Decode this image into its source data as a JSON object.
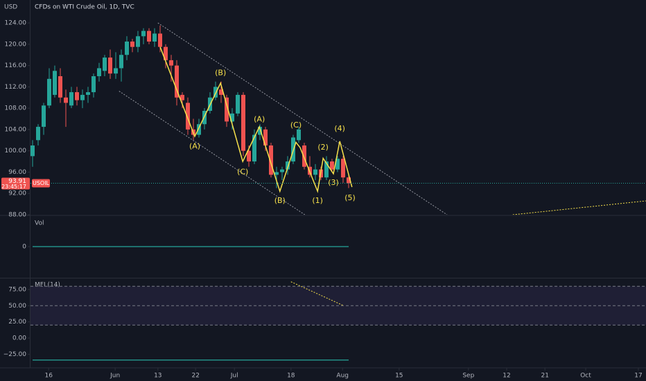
{
  "chart_data": [
    {
      "type": "candlestick",
      "title": "CFDs on WTI Crude Oil, 1D, TVC",
      "y_label": "USD",
      "symbol": "USOIL",
      "countdown": "23:45:17",
      "up_color": "#26a69a",
      "down_color": "#ef5350",
      "open": [
        99,
        102,
        104.5,
        108.5,
        110.5,
        114,
        110,
        108.5,
        111,
        109.5,
        110.5,
        111,
        114,
        115,
        117.5,
        114.5,
        115.5,
        118,
        120.5,
        119.5,
        121.5,
        122.5,
        120.5,
        122,
        119.5,
        117,
        116,
        110.5,
        109,
        104,
        103,
        105,
        107.5,
        110,
        111.5,
        110,
        105.5,
        107,
        110.5,
        100,
        98,
        103,
        104,
        101,
        95.5,
        96,
        96.5,
        98,
        102,
        101,
        97,
        95.5,
        96.5,
        95,
        98,
        96.5,
        98.5,
        95
      ],
      "high": [
        102,
        105,
        109,
        115.5,
        116,
        115.5,
        111.5,
        112,
        112,
        111.5,
        112,
        114.5,
        116.5,
        118,
        119,
        118.5,
        119,
        121.5,
        121,
        122.5,
        123,
        123,
        123,
        123.5,
        120,
        118,
        117,
        111,
        110,
        106,
        106,
        108,
        111,
        113,
        113,
        110.5,
        108,
        111,
        111,
        101,
        104,
        105,
        104.5,
        101.5,
        97,
        97,
        99,
        103,
        104.5,
        101.5,
        99,
        97.5,
        97,
        99,
        98.5,
        99,
        99,
        95.5
      ],
      "low": [
        97,
        101,
        103,
        108,
        110,
        109,
        104.5,
        108,
        108.5,
        108,
        109,
        110,
        113,
        114,
        113.5,
        113.5,
        113,
        117,
        118.5,
        118.5,
        120,
        120,
        119.5,
        118.5,
        115.5,
        113,
        108.5,
        108,
        103,
        102,
        102.5,
        104,
        107,
        109.5,
        109,
        104.5,
        104,
        106.5,
        99,
        97,
        97.5,
        102,
        100,
        95,
        93,
        94.5,
        95.5,
        97.5,
        101.5,
        96.5,
        95,
        94.5,
        94.5,
        94.5,
        96,
        96,
        94,
        93
      ],
      "close": [
        101,
        104.5,
        108.5,
        113.5,
        115,
        110,
        109,
        111,
        109.5,
        110.5,
        111,
        114,
        115.5,
        117.5,
        114.5,
        115.5,
        118,
        120.5,
        119.5,
        121.5,
        122.5,
        120.5,
        122,
        119.5,
        117,
        116,
        110,
        109.5,
        104,
        103,
        105,
        107.5,
        110,
        112,
        110.5,
        105.5,
        107,
        110.5,
        100,
        98,
        103,
        104.5,
        101,
        95.5,
        96,
        96.5,
        98,
        102.5,
        104,
        97,
        95.5,
        96.5,
        95,
        98,
        96.5,
        98.5,
        95,
        93.91
      ],
      "xlim": [
        -0.375,
        110.625
      ],
      "xticks": [
        {
          "value": 2.9,
          "label": "16"
        },
        {
          "value": 14.9,
          "label": "Jun"
        },
        {
          "value": 22.6,
          "label": "13"
        },
        {
          "value": 29.4,
          "label": "22"
        },
        {
          "value": 36.4,
          "label": "Jul"
        },
        {
          "value": 46.6,
          "label": "18"
        },
        {
          "value": 55.9,
          "label": "Aug"
        },
        {
          "value": 66.1,
          "label": "15"
        },
        {
          "value": 78.6,
          "label": "Sep"
        },
        {
          "value": 85.5,
          "label": "12"
        },
        {
          "value": 92.4,
          "label": "21"
        },
        {
          "value": 99.75,
          "label": "Oct"
        },
        {
          "value": 109.25,
          "label": "17"
        }
      ],
      "ylim": [
        88,
        128.3
      ],
      "yticks": [
        {
          "value": 124,
          "label": "124.00"
        },
        {
          "value": 120,
          "label": "120.00"
        },
        {
          "value": 116,
          "label": "116.00"
        },
        {
          "value": 112,
          "label": "112.00"
        },
        {
          "value": 108,
          "label": "108.00"
        },
        {
          "value": 104,
          "label": "104.00"
        },
        {
          "value": 100,
          "label": "100.00"
        },
        {
          "value": 96,
          "label": "96.00"
        },
        {
          "value": 92,
          "label": "92.00"
        },
        {
          "value": 88,
          "label": "88.00"
        }
      ],
      "trend_lines": [
        {
          "color": "#9598a1",
          "x": [
            22.6,
            74.75
          ],
          "y": [
            124,
            88
          ]
        },
        {
          "color": "#9598a1",
          "x": [
            15.6,
            49.1
          ],
          "y": [
            111.2,
            88
          ]
        },
        {
          "color": "#f7e14b",
          "x": [
            86.6,
            110.6
          ],
          "y": [
            88,
            90.6
          ]
        }
      ],
      "wave_color": "#f7e14b",
      "wave_line": {
        "x": [
          23,
          29.25,
          33.9,
          37.9,
          40.9,
          44.6,
          47.5,
          48.25,
          51.4,
          52.4,
          54.25,
          55.4,
          57.6
        ],
        "y": [
          119.5,
          102.7,
          112.7,
          98,
          104.5,
          92.4,
          101.6,
          100.6,
          92.4,
          98.6,
          95.7,
          101.8,
          93.2
        ]
      },
      "annotations": [
        {
          "text": "(A)",
          "x": 29.25,
          "y": 100.8
        },
        {
          "text": "(B)",
          "x": 33.9,
          "y": 114.6
        },
        {
          "text": "(C)",
          "x": 37.9,
          "y": 96
        },
        {
          "text": "(A)",
          "x": 40.9,
          "y": 105.9
        },
        {
          "text": "(B)",
          "x": 44.6,
          "y": 90.6
        },
        {
          "text": "(C)",
          "x": 47.5,
          "y": 104.8
        },
        {
          "text": "(1)",
          "x": 51.4,
          "y": 90.6
        },
        {
          "text": "(2)",
          "x": 52.4,
          "y": 100.6
        },
        {
          "text": "(3)",
          "x": 54.25,
          "y": 94
        },
        {
          "text": "(4)",
          "x": 55.4,
          "y": 104.1
        },
        {
          "text": "(5)",
          "x": 57.25,
          "y": 91.1
        }
      ]
    },
    {
      "type": "line",
      "title": "Vol",
      "color": "#26a69a",
      "x": [
        0,
        57
      ],
      "values": [
        0,
        0
      ],
      "ylim": [
        -1,
        1
      ],
      "yticks": [
        0
      ]
    },
    {
      "type": "line",
      "title": "MFI (14)",
      "color": "#26a69a",
      "x": [
        0,
        57
      ],
      "values": [
        -34,
        -34
      ],
      "ylim": [
        -45,
        91
      ],
      "yticks": [
        {
          "value": 75,
          "label": "75.00"
        },
        {
          "value": 50,
          "label": "50.00"
        },
        {
          "value": 25,
          "label": "25.00"
        },
        {
          "value": 0,
          "label": "0.00"
        },
        {
          "value": -25,
          "label": "−25.00"
        }
      ],
      "band": [
        20,
        80
      ],
      "band_color": "#7e57c2",
      "levels": [
        80,
        50,
        20
      ],
      "trend_line": {
        "color": "#f7e14b",
        "x": [
          46.6,
          56.1
        ],
        "y": [
          87,
          50
        ]
      }
    }
  ]
}
